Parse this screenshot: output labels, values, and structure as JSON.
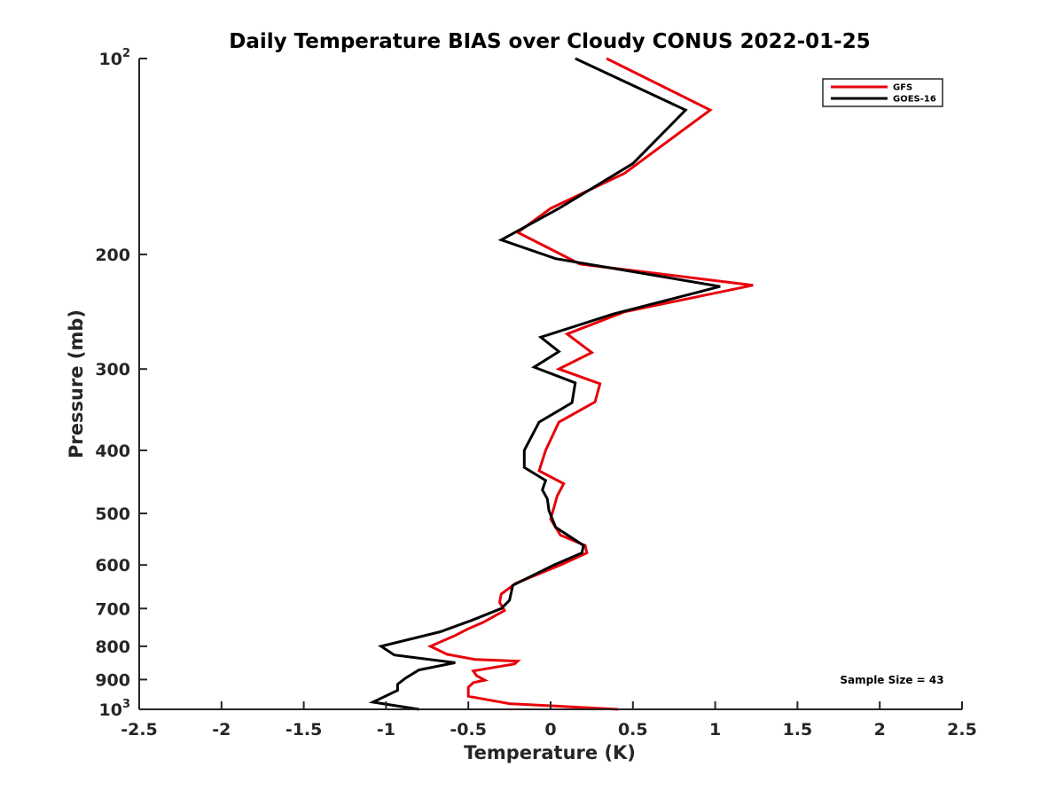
{
  "chart_data": {
    "type": "line",
    "title": "Daily Temperature BIAS over Cloudy CONUS 2022-01-25",
    "xlabel": "Temperature (K)",
    "ylabel": "Pressure (mb)",
    "xlim": [
      -2.5,
      2.5
    ],
    "ylim": [
      100,
      1000
    ],
    "y_scale": "log",
    "y_reversed": true,
    "grid": false,
    "legend_position": "top-right",
    "x_ticks": [
      -2.5,
      -2,
      -1.5,
      -1,
      -0.5,
      0,
      0.5,
      1,
      1.5,
      2,
      2.5
    ],
    "x_tick_labels": [
      "-2.5",
      "-2",
      "-1.5",
      "-1",
      "-0.5",
      "0",
      "0.5",
      "1",
      "1.5",
      "2",
      "2.5"
    ],
    "y_ticks": [
      {
        "value": 100,
        "label": "10",
        "sup": "2"
      },
      {
        "value": 200,
        "label": "200",
        "sup": ""
      },
      {
        "value": 300,
        "label": "300",
        "sup": ""
      },
      {
        "value": 400,
        "label": "400",
        "sup": ""
      },
      {
        "value": 500,
        "label": "500",
        "sup": ""
      },
      {
        "value": 600,
        "label": "600",
        "sup": ""
      },
      {
        "value": 700,
        "label": "700",
        "sup": ""
      },
      {
        "value": 800,
        "label": "800",
        "sup": ""
      },
      {
        "value": 900,
        "label": "900",
        "sup": ""
      },
      {
        "value": 1000,
        "label": "10",
        "sup": "3"
      }
    ],
    "annotation": "Sample Size = 43",
    "series": [
      {
        "name": "GFS",
        "color": "#e8000b",
        "points": [
          [
            0.34,
            100
          ],
          [
            0.97,
            120
          ],
          [
            0.45,
            150
          ],
          [
            0,
            170
          ],
          [
            -0.2,
            185
          ],
          [
            0.18,
            207
          ],
          [
            1.23,
            223
          ],
          [
            0.45,
            245
          ],
          [
            0.1,
            265
          ],
          [
            0.25,
            283
          ],
          [
            0.05,
            300
          ],
          [
            0.3,
            316
          ],
          [
            0.27,
            337
          ],
          [
            0.05,
            362
          ],
          [
            -0.03,
            400
          ],
          [
            -0.07,
            430
          ],
          [
            0.08,
            450
          ],
          [
            0.04,
            470
          ],
          [
            0.02,
            490
          ],
          [
            0,
            510
          ],
          [
            0.06,
            540
          ],
          [
            0.21,
            560
          ],
          [
            0.22,
            575
          ],
          [
            0.06,
            600
          ],
          [
            -0.21,
            640
          ],
          [
            -0.3,
            665
          ],
          [
            -0.31,
            685
          ],
          [
            -0.28,
            705
          ],
          [
            -0.41,
            735
          ],
          [
            -0.5,
            752
          ],
          [
            -0.58,
            770
          ],
          [
            -0.73,
            800
          ],
          [
            -0.63,
            823
          ],
          [
            -0.46,
            838
          ],
          [
            -0.2,
            843
          ],
          [
            -0.22,
            852
          ],
          [
            -0.47,
            873
          ],
          [
            -0.45,
            888
          ],
          [
            -0.4,
            902
          ],
          [
            -0.47,
            910
          ],
          [
            -0.5,
            925
          ],
          [
            -0.5,
            955
          ],
          [
            -0.25,
            980
          ],
          [
            0.41,
            1000
          ]
        ]
      },
      {
        "name": "GOES-16",
        "color": "#000000",
        "points": [
          [
            0.15,
            100
          ],
          [
            0.82,
            120
          ],
          [
            0.5,
            145
          ],
          [
            0.05,
            170
          ],
          [
            -0.3,
            190
          ],
          [
            0.03,
            203
          ],
          [
            1.03,
            224
          ],
          [
            0.38,
            247
          ],
          [
            -0.06,
            268
          ],
          [
            0.05,
            282
          ],
          [
            -0.1,
            298
          ],
          [
            0.15,
            315
          ],
          [
            0.13,
            338
          ],
          [
            -0.07,
            362
          ],
          [
            -0.16,
            400
          ],
          [
            -0.16,
            425
          ],
          [
            -0.03,
            445
          ],
          [
            -0.05,
            460
          ],
          [
            -0.02,
            475
          ],
          [
            -0.01,
            495
          ],
          [
            0.03,
            525
          ],
          [
            0.2,
            560
          ],
          [
            0.19,
            575
          ],
          [
            0.02,
            600
          ],
          [
            -0.23,
            645
          ],
          [
            -0.25,
            680
          ],
          [
            -0.3,
            700
          ],
          [
            -0.48,
            730
          ],
          [
            -0.67,
            760
          ],
          [
            -1.03,
            800
          ],
          [
            -0.95,
            825
          ],
          [
            -0.58,
            848
          ],
          [
            -0.8,
            870
          ],
          [
            -0.88,
            895
          ],
          [
            -0.93,
            915
          ],
          [
            -0.93,
            935
          ],
          [
            -1.08,
            975
          ],
          [
            -0.8,
            1000
          ]
        ]
      }
    ]
  }
}
